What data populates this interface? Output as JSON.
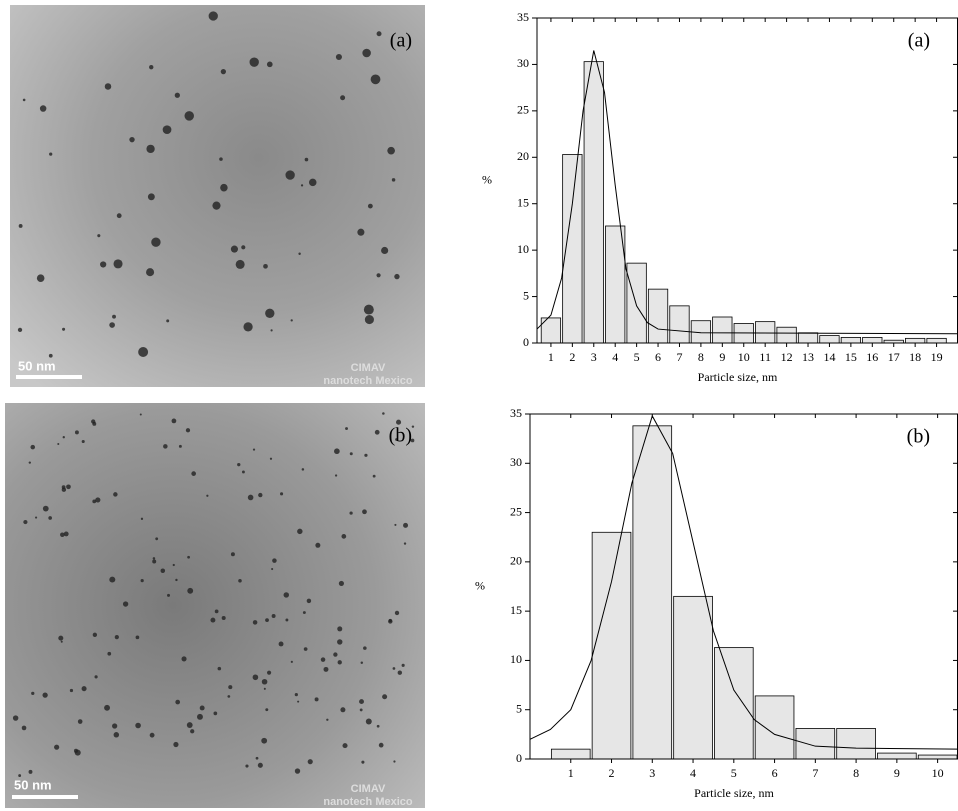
{
  "images": [
    {
      "label": "(a)",
      "scale_bar": "50 nm",
      "watermark": [
        "CIMAV",
        "nanotech Mexico"
      ]
    },
    {
      "label": "(b)",
      "scale_bar": "50 nm",
      "watermark": [
        "CIMAV",
        "nanotech Mexico"
      ]
    }
  ],
  "chart_data": [
    {
      "type": "histogram",
      "label": "(a)",
      "ylabel": "%",
      "xlabel": "Particle size, nm",
      "color": "#e6e6e6",
      "bins": [
        0.5,
        1.5,
        2.5,
        3.5,
        4.5,
        5.5,
        6.5,
        7.5,
        8.5,
        9.5,
        10.5,
        11.5,
        12.5,
        13.5,
        14.5,
        15.5,
        16.5,
        17.5,
        18.5,
        19.5
      ],
      "values": [
        2.7,
        20.3,
        30.3,
        12.6,
        8.6,
        5.8,
        4.0,
        2.4,
        2.8,
        2.1,
        2.3,
        1.7,
        1.1,
        0.8,
        0.6,
        0.6,
        0.3,
        0.5,
        0.5
      ],
      "xlim": [
        0.35,
        20
      ],
      "ylim": [
        0,
        35
      ],
      "xticks": [
        1,
        2,
        3,
        4,
        5,
        6,
        7,
        8,
        9,
        10,
        11,
        12,
        13,
        14,
        15,
        16,
        17,
        18,
        19
      ],
      "yticks": [
        0,
        5,
        10,
        15,
        20,
        25,
        30,
        35
      ],
      "curve": {
        "x": [
          0.35,
          1,
          1.5,
          2,
          2.5,
          3,
          3.5,
          4,
          4.5,
          5,
          5.5,
          6,
          8,
          20
        ],
        "values": [
          1.5,
          3,
          7,
          15,
          25,
          31.5,
          27,
          17,
          8,
          4,
          2.2,
          1.5,
          1.1,
          1
        ]
      }
    },
    {
      "type": "histogram",
      "label": "(b)",
      "ylabel": "%",
      "xlabel": "Particle size, nm",
      "color": "#e6e6e6",
      "bins": [
        0.5,
        1.5,
        2.5,
        3.5,
        4.5,
        5.5,
        6.5,
        7.5,
        8.5,
        9.5,
        10.5
      ],
      "values": [
        1.0,
        23.0,
        33.8,
        16.5,
        11.3,
        6.4,
        3.1,
        3.1,
        0.6,
        0.4
      ],
      "xlim": [
        0,
        10.5
      ],
      "ylim": [
        0,
        35
      ],
      "xticks": [
        1,
        2,
        3,
        4,
        5,
        6,
        7,
        8,
        9,
        10
      ],
      "yticks": [
        0,
        5,
        10,
        15,
        20,
        25,
        30,
        35
      ],
      "curve": {
        "x": [
          0,
          0.5,
          1,
          1.5,
          2,
          2.5,
          3,
          3.5,
          4,
          4.5,
          5,
          5.5,
          6,
          7,
          8,
          10.5
        ],
        "values": [
          2,
          3,
          5,
          10,
          18,
          28,
          34.8,
          31,
          22,
          13,
          7,
          4,
          2.5,
          1.3,
          1.1,
          1
        ]
      }
    }
  ]
}
